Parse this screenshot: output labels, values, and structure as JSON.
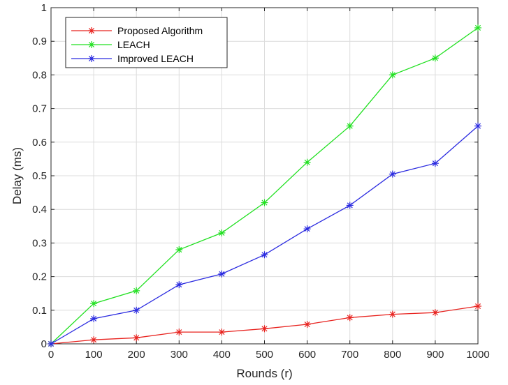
{
  "chart_data": {
    "type": "line",
    "xlabel": "Rounds (r)",
    "ylabel": "Delay (ms)",
    "xlim": [
      0,
      1000
    ],
    "ylim": [
      0,
      1
    ],
    "x_ticks": [
      0,
      100,
      200,
      300,
      400,
      500,
      600,
      700,
      800,
      900,
      1000
    ],
    "y_ticks": [
      0,
      0.1,
      0.2,
      0.3,
      0.4,
      0.5,
      0.6,
      0.7,
      0.8,
      0.9,
      1
    ],
    "x_tick_labels": [
      "0",
      "100",
      "200",
      "300",
      "400",
      "500",
      "600",
      "700",
      "800",
      "900",
      "1000"
    ],
    "y_tick_labels": [
      "0",
      "0.1",
      "0.2",
      "0.3",
      "0.4",
      "0.5",
      "0.6",
      "0.7",
      "0.8",
      "0.9",
      "1"
    ],
    "grid": true,
    "legend_position": "top-left",
    "x": [
      0,
      100,
      200,
      300,
      400,
      500,
      600,
      700,
      800,
      900,
      1000
    ],
    "series": [
      {
        "name": "Proposed Algorithm",
        "color": "#e8231f",
        "marker": "asterisk",
        "values": [
          0,
          0.012,
          0.018,
          0.035,
          0.035,
          0.045,
          0.058,
          0.078,
          0.088,
          0.093,
          0.112
        ]
      },
      {
        "name": "LEACH",
        "color": "#21e021",
        "marker": "asterisk",
        "values": [
          0,
          0.12,
          0.158,
          0.28,
          0.33,
          0.42,
          0.54,
          0.648,
          0.8,
          0.85,
          0.94
        ]
      },
      {
        "name": "Improved LEACH",
        "color": "#2b2be0",
        "marker": "asterisk",
        "values": [
          0,
          0.075,
          0.1,
          0.176,
          0.208,
          0.265,
          0.342,
          0.412,
          0.505,
          0.537,
          0.648
        ]
      }
    ]
  }
}
